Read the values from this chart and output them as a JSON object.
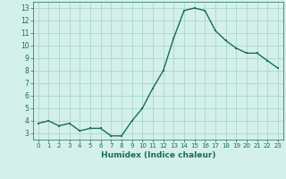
{
  "x": [
    0,
    1,
    2,
    3,
    4,
    5,
    6,
    7,
    8,
    9,
    10,
    11,
    12,
    13,
    14,
    15,
    16,
    17,
    18,
    19,
    20,
    21,
    22,
    23
  ],
  "y": [
    3.8,
    4.0,
    3.6,
    3.8,
    3.2,
    3.4,
    3.4,
    2.8,
    2.8,
    4.0,
    5.0,
    6.6,
    8.0,
    10.6,
    12.8,
    13.0,
    12.8,
    11.2,
    10.4,
    9.8,
    9.4,
    9.4,
    8.8,
    8.2
  ],
  "line_color": "#1a6b5a",
  "marker": "s",
  "marker_size": 2.0,
  "bg_color": "#d4f0ea",
  "grid_color": "#a8d8ce",
  "xlabel": "Humidex (Indice chaleur)",
  "xlim": [
    -0.5,
    23.5
  ],
  "ylim": [
    2.5,
    13.5
  ],
  "yticks": [
    3,
    4,
    5,
    6,
    7,
    8,
    9,
    10,
    11,
    12,
    13
  ],
  "xticks": [
    0,
    1,
    2,
    3,
    4,
    5,
    6,
    7,
    8,
    9,
    10,
    11,
    12,
    13,
    14,
    15,
    16,
    17,
    18,
    19,
    20,
    21,
    22,
    23
  ]
}
